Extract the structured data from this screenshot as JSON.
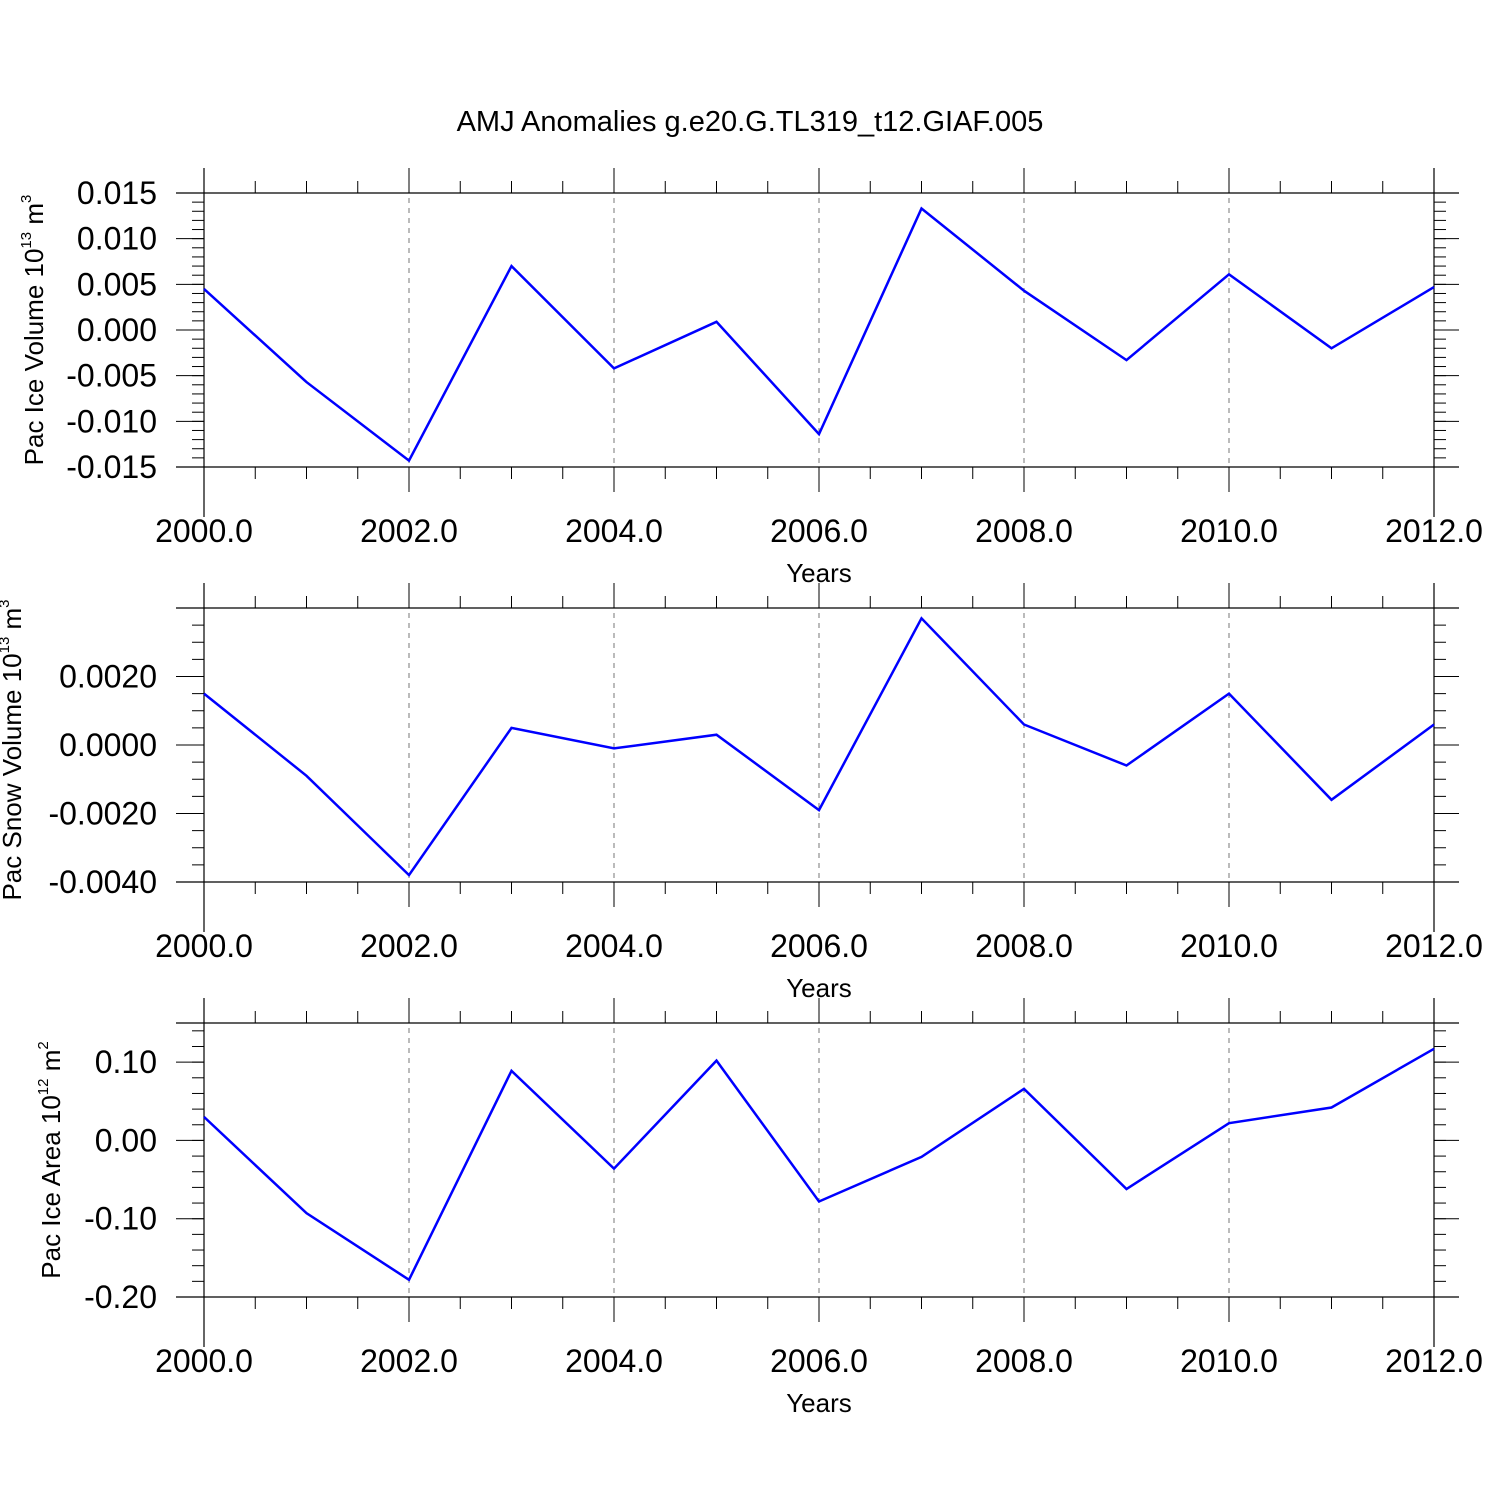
{
  "figure": {
    "title": "AMJ Anomalies g.e20.G.TL319_t12.GIAF.005"
  },
  "chart_data": [
    {
      "type": "line",
      "ylabel": {
        "main": "Pac Ice Volume 10",
        "exp": "13",
        "unit": " m",
        "unit_exp": "3"
      },
      "xlabel": "Years",
      "xlim": [
        2000,
        2012
      ],
      "ylim": [
        -0.015,
        0.015
      ],
      "x_ticks": [
        "2000.0",
        "2002.0",
        "2004.0",
        "2006.0",
        "2008.0",
        "2010.0",
        "2012.0"
      ],
      "y_ticks": [
        "-0.015",
        "-0.010",
        "-0.005",
        "0.000",
        "0.005",
        "0.010",
        "0.015"
      ],
      "y_tick_values": [
        -0.015,
        -0.01,
        -0.005,
        0.0,
        0.005,
        0.01,
        0.015
      ],
      "y_minor_step": 0.001,
      "grid": "vertical dashed at labeled x ticks",
      "color": "#0000ff",
      "x": [
        2000,
        2001,
        2002,
        2003,
        2004,
        2005,
        2006,
        2007,
        2008,
        2009,
        2010,
        2011,
        2012
      ],
      "values": [
        0.0045,
        -0.0057,
        -0.0143,
        0.007,
        -0.0042,
        0.0009,
        -0.0114,
        0.0133,
        0.0043,
        -0.0033,
        0.0061,
        -0.002,
        0.0047
      ]
    },
    {
      "type": "line",
      "ylabel": {
        "main": "Pac Snow Volume 10",
        "exp": "13",
        "unit": " m",
        "unit_exp": "3"
      },
      "xlabel": "Years",
      "xlim": [
        2000,
        2012
      ],
      "ylim": [
        -0.004,
        0.004
      ],
      "x_ticks": [
        "2000.0",
        "2002.0",
        "2004.0",
        "2006.0",
        "2008.0",
        "2010.0",
        "2012.0"
      ],
      "y_ticks": [
        "-0.0040",
        "-0.0020",
        "0.0000",
        "0.0020"
      ],
      "y_tick_values": [
        -0.004,
        -0.002,
        0.0,
        0.002
      ],
      "y_minor_step": 0.0005,
      "grid": "vertical dashed at labeled x ticks",
      "color": "#0000ff",
      "x": [
        2000,
        2001,
        2002,
        2003,
        2004,
        2005,
        2006,
        2007,
        2008,
        2009,
        2010,
        2011,
        2012
      ],
      "values": [
        0.0015,
        -0.0009,
        -0.0038,
        0.0005,
        -0.0001,
        0.0003,
        -0.0019,
        0.0037,
        0.0006,
        -0.0006,
        0.0015,
        -0.0016,
        0.0006
      ]
    },
    {
      "type": "line",
      "ylabel": {
        "main": "Pac Ice Area 10",
        "exp": "12",
        "unit": " m",
        "unit_exp": "2"
      },
      "xlabel": "Years",
      "xlim": [
        2000,
        2012
      ],
      "ylim": [
        -0.2,
        0.15
      ],
      "x_ticks": [
        "2000.0",
        "2002.0",
        "2004.0",
        "2006.0",
        "2008.0",
        "2010.0",
        "2012.0"
      ],
      "y_ticks": [
        "-0.20",
        "-0.10",
        "0.00",
        "0.10"
      ],
      "y_tick_values": [
        -0.2,
        -0.1,
        0.0,
        0.1
      ],
      "y_minor_step": 0.02,
      "grid": "vertical dashed at labeled x ticks",
      "color": "#0000ff",
      "x": [
        2000,
        2001,
        2002,
        2003,
        2004,
        2005,
        2006,
        2007,
        2008,
        2009,
        2010,
        2011,
        2012
      ],
      "values": [
        0.03,
        -0.093,
        -0.178,
        0.089,
        -0.036,
        0.102,
        -0.078,
        -0.021,
        0.066,
        -0.062,
        0.022,
        0.042,
        0.117
      ]
    }
  ]
}
